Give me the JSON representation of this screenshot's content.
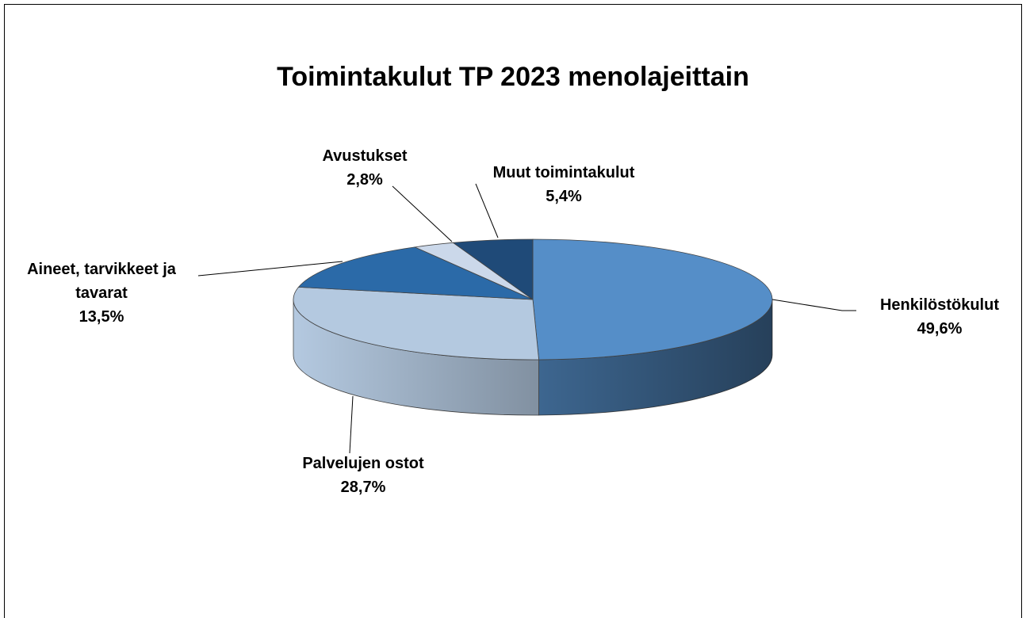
{
  "chart_data": {
    "type": "pie3d",
    "title": "Toimintakulut TP 2023 menolajeittain",
    "categories": [
      "Henkilöstökulut",
      "Palvelujen ostot",
      "Aineet, tarvikkeet ja tavarat",
      "Avustukset",
      "Muut toimintakulut"
    ],
    "values": [
      49.6,
      28.7,
      13.5,
      2.8,
      5.4
    ],
    "value_labels": [
      "49,6%",
      "28,7%",
      "13,5%",
      "2,8%",
      "5,4%"
    ],
    "colors": [
      "#558ec8",
      "#b4c9e0",
      "#2b6aa8",
      "#cbd8ea",
      "#1f4a78"
    ]
  }
}
